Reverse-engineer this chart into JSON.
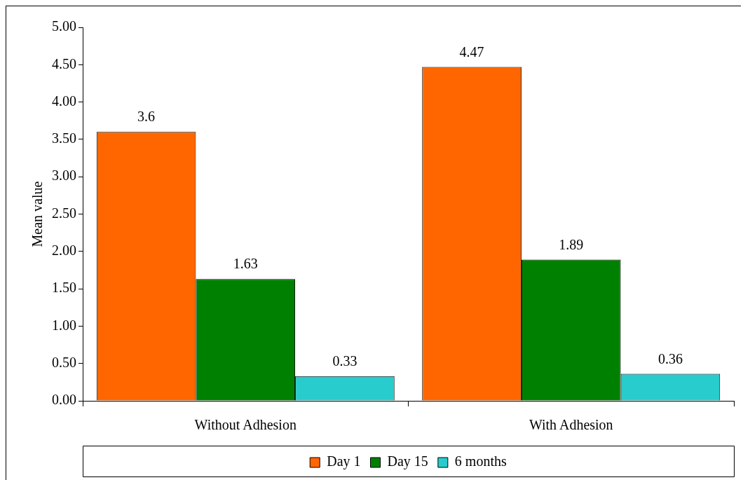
{
  "chart_data": {
    "type": "bar",
    "ylabel": "Mean value",
    "categories": [
      "Without Adhesion",
      "With Adhesion"
    ],
    "series": [
      {
        "name": "Day 1",
        "color": "#ff6600",
        "values": [
          3.6,
          4.47
        ]
      },
      {
        "name": "Day 15",
        "color": "#008000",
        "values": [
          1.63,
          1.89
        ]
      },
      {
        "name": "6 months",
        "color": "#29cccc",
        "values": [
          0.33,
          0.36
        ]
      }
    ],
    "ylim": [
      0,
      5
    ],
    "yticks": [
      {
        "value": 0,
        "label": "0.00"
      },
      {
        "value": 0.5,
        "label": "0.50"
      },
      {
        "value": 1,
        "label": "1.00"
      },
      {
        "value": 1.5,
        "label": "1.50"
      },
      {
        "value": 2,
        "label": "2.00"
      },
      {
        "value": 2.5,
        "label": "2.50"
      },
      {
        "value": 3,
        "label": "3.00"
      },
      {
        "value": 3.5,
        "label": "3.50"
      },
      {
        "value": 4,
        "label": "4.00"
      },
      {
        "value": 4.5,
        "label": "4.50"
      },
      {
        "value": 5,
        "label": "5.00"
      }
    ],
    "data_labels": true,
    "legend": "bottom"
  }
}
